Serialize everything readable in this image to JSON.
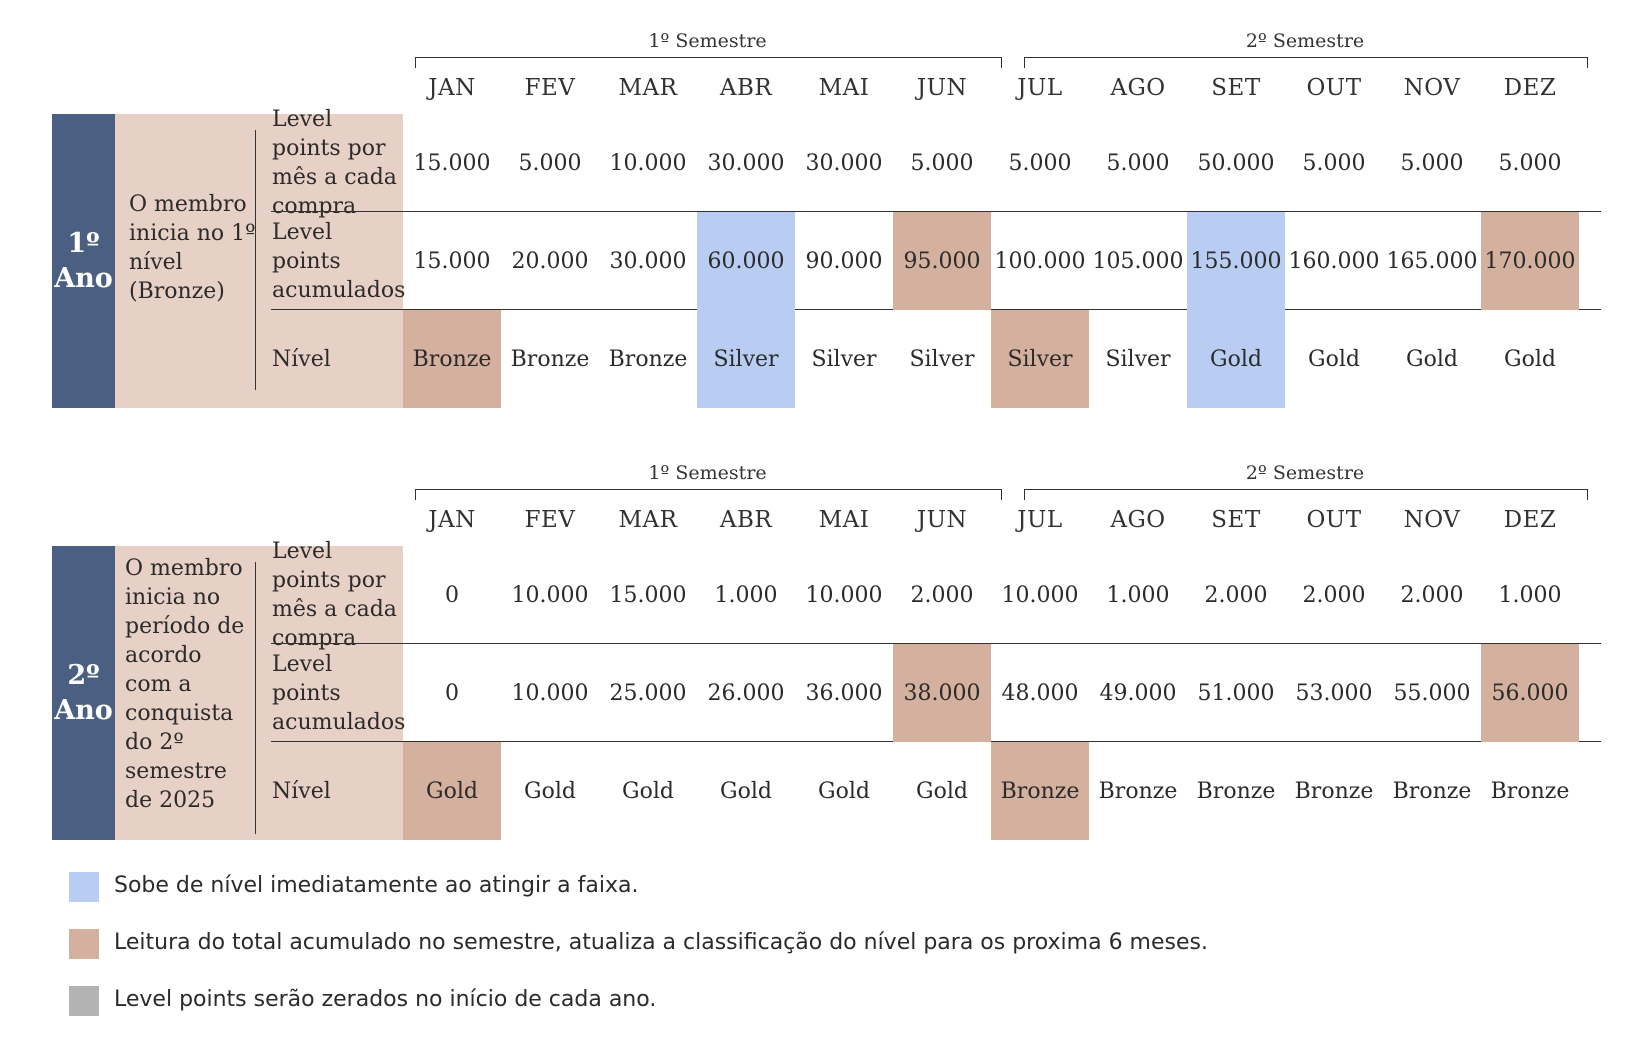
{
  "colors": {
    "year_block": "#4a5f82",
    "label_bg": "#e7d0c5",
    "highlight_blue": "#b9cdf3",
    "highlight_tan": "#d4b09e",
    "legend_gray": "#b3b3b3"
  },
  "months": [
    "JAN",
    "FEV",
    "MAR",
    "ABR",
    "MAI",
    "JUN",
    "JUL",
    "AGO",
    "SET",
    "OUT",
    "NOV",
    "DEZ"
  ],
  "semesters": [
    "1º Semestre",
    "2º Semestre"
  ],
  "row_labels": {
    "por_mes": "Level points por mês a cada compra",
    "acumulados": "Level points acumulados",
    "nivel": "Nível"
  },
  "years": [
    {
      "title": "1º Ano",
      "description": "O membro inicia no 1º nível (Bronze)",
      "por_mes": [
        "15.000",
        "5.000",
        "10.000",
        "30.000",
        "30.000",
        "5.000",
        "5.000",
        "5.000",
        "50.000",
        "5.000",
        "5.000",
        "5.000"
      ],
      "acumulados": [
        "15.000",
        "20.000",
        "30.000",
        "60.000",
        "90.000",
        "95.000",
        "100.000",
        "105.000",
        "155.000",
        "160.000",
        "165.000",
        "170.000"
      ],
      "acumulados_hl": [
        "",
        "",
        "",
        "blue",
        "",
        "tan",
        "",
        "",
        "blue",
        "",
        "",
        "tan"
      ],
      "nivel": [
        "Bronze",
        "Bronze",
        "Bronze",
        "Silver",
        "Silver",
        "Silver",
        "Silver",
        "Silver",
        "Gold",
        "Gold",
        "Gold",
        "Gold"
      ],
      "nivel_hl": [
        "tan",
        "",
        "",
        "blue",
        "",
        "",
        "tan",
        "",
        "blue",
        "",
        "",
        ""
      ]
    },
    {
      "title": "2º Ano",
      "description": "O membro inicia no período de acordo com a conquista do 2º semestre de 2025",
      "por_mes": [
        "0",
        "10.000",
        "15.000",
        "1.000",
        "10.000",
        "2.000",
        "10.000",
        "1.000",
        "2.000",
        "2.000",
        "2.000",
        "1.000"
      ],
      "acumulados": [
        "0",
        "10.000",
        "25.000",
        "26.000",
        "36.000",
        "38.000",
        "48.000",
        "49.000",
        "51.000",
        "53.000",
        "55.000",
        "56.000"
      ],
      "acumulados_hl": [
        "",
        "",
        "",
        "",
        "",
        "tan",
        "",
        "",
        "",
        "",
        "",
        "tan"
      ],
      "nivel": [
        "Gold",
        "Gold",
        "Gold",
        "Gold",
        "Gold",
        "Gold",
        "Bronze",
        "Bronze",
        "Bronze",
        "Bronze",
        "Bronze",
        "Bronze"
      ],
      "nivel_hl": [
        "tan",
        "",
        "",
        "",
        "",
        "",
        "tan",
        "",
        "",
        "",
        "",
        ""
      ]
    }
  ],
  "legend": [
    {
      "color": "blue",
      "text": "Sobe de nível imediatamente ao atingir a faixa."
    },
    {
      "color": "tan",
      "text": "Leitura do total acumulado no semestre, atualiza a classificação do nível para os proxima 6 meses."
    },
    {
      "color": "gray",
      "text": "Level points serão zerados no início de cada ano."
    }
  ]
}
